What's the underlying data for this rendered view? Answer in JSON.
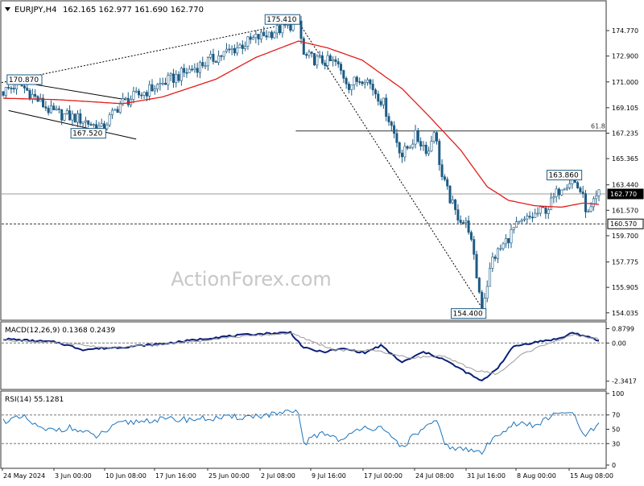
{
  "header": {
    "symbol": "EURJPY,H4",
    "ohlc": "162.165 162.977 161.690 162.770"
  },
  "watermark": "ActionForex.com",
  "colors": {
    "candle": "#1d5b84",
    "ma": "#e31c1c",
    "macd": "#0b1f7a",
    "signal": "#9a9a9a",
    "rsi": "#1b74bd",
    "grid": "#333333"
  },
  "chart_data": [
    {
      "type": "candlestick",
      "title": "EURJPY,H4",
      "y_ticks": [
        174.77,
        172.9,
        171.0,
        169.105,
        167.235,
        165.365,
        163.44,
        161.57,
        159.7,
        157.775,
        155.905,
        154.035
      ],
      "ylim": [
        153.55,
        176.9
      ],
      "x_ticks": [
        "24 May 2024",
        "3 Jun 00:00",
        "10 Jun 08:00",
        "17 Jun 16:00",
        "25 Jun 00:00",
        "2 Jul 08:00",
        "9 Jul 16:00",
        "17 Jul 00:00",
        "24 Jul 08:00",
        "31 Jul 16:00",
        "8 Aug 00:00",
        "15 Aug 08:00"
      ],
      "current_price": "162.770",
      "support_level": "160.570",
      "fib_label": "61.8",
      "fib_level": 167.4,
      "price_labels": [
        "175.410",
        "170.870",
        "167.520",
        "163.860",
        "154.400"
      ],
      "anchors": [
        {
          "t": 0,
          "p": 170.3
        },
        {
          "t": 6,
          "p": 170.87
        },
        {
          "t": 18,
          "p": 168.8
        },
        {
          "t": 30,
          "p": 168.2
        },
        {
          "t": 37,
          "p": 167.52
        },
        {
          "t": 44,
          "p": 169.4
        },
        {
          "t": 60,
          "p": 170.9
        },
        {
          "t": 80,
          "p": 172.8
        },
        {
          "t": 95,
          "p": 174.2
        },
        {
          "t": 111,
          "p": 175.41
        },
        {
          "t": 113,
          "p": 172.9
        },
        {
          "t": 118,
          "p": 172.6
        },
        {
          "t": 125,
          "p": 172.4
        },
        {
          "t": 130,
          "p": 170.8
        },
        {
          "t": 136,
          "p": 171.4
        },
        {
          "t": 143,
          "p": 169.4
        },
        {
          "t": 150,
          "p": 165.6
        },
        {
          "t": 155,
          "p": 167.0
        },
        {
          "t": 160,
          "p": 165.9
        },
        {
          "t": 162,
          "p": 167.6
        },
        {
          "t": 165,
          "p": 164.0
        },
        {
          "t": 170,
          "p": 161.4
        },
        {
          "t": 175,
          "p": 160.3
        },
        {
          "t": 180,
          "p": 154.4
        },
        {
          "t": 184,
          "p": 158.0
        },
        {
          "t": 188,
          "p": 159.0
        },
        {
          "t": 192,
          "p": 160.2
        },
        {
          "t": 198,
          "p": 161.0
        },
        {
          "t": 205,
          "p": 161.8
        },
        {
          "t": 210,
          "p": 163.4
        },
        {
          "t": 214,
          "p": 163.86
        },
        {
          "t": 217,
          "p": 163.0
        },
        {
          "t": 220,
          "p": 161.2
        },
        {
          "t": 224,
          "p": 162.77
        }
      ],
      "moving_average": [
        {
          "t": 0,
          "p": 169.8
        },
        {
          "t": 20,
          "p": 169.7
        },
        {
          "t": 45,
          "p": 169.4
        },
        {
          "t": 60,
          "p": 169.9
        },
        {
          "t": 80,
          "p": 171.2
        },
        {
          "t": 95,
          "p": 172.8
        },
        {
          "t": 111,
          "p": 174.0
        },
        {
          "t": 122,
          "p": 173.5
        },
        {
          "t": 135,
          "p": 172.6
        },
        {
          "t": 150,
          "p": 170.5
        },
        {
          "t": 160,
          "p": 168.5
        },
        {
          "t": 172,
          "p": 166.0
        },
        {
          "t": 182,
          "p": 163.3
        },
        {
          "t": 190,
          "p": 162.3
        },
        {
          "t": 200,
          "p": 161.9
        },
        {
          "t": 210,
          "p": 161.8
        },
        {
          "t": 218,
          "p": 162.1
        },
        {
          "t": 224,
          "p": 162.0
        }
      ]
    },
    {
      "type": "line",
      "title": "MACD(12,26,9) 0.1368 0.2439",
      "y_ticks": [
        "0.8799",
        "0.00",
        "-2.3417"
      ],
      "ylim": [
        -2.75,
        1.2
      ],
      "series": [
        {
          "name": "MACD",
          "points": [
            {
              "t": 0,
              "v": 0.25
            },
            {
              "t": 20,
              "v": 0.05
            },
            {
              "t": 30,
              "v": -0.4
            },
            {
              "t": 45,
              "v": -0.25
            },
            {
              "t": 60,
              "v": -0.05
            },
            {
              "t": 80,
              "v": 0.35
            },
            {
              "t": 95,
              "v": 0.55
            },
            {
              "t": 108,
              "v": 0.65
            },
            {
              "t": 113,
              "v": -0.3
            },
            {
              "t": 120,
              "v": -0.55
            },
            {
              "t": 128,
              "v": -0.35
            },
            {
              "t": 136,
              "v": -0.6
            },
            {
              "t": 142,
              "v": -0.15
            },
            {
              "t": 150,
              "v": -1.2
            },
            {
              "t": 158,
              "v": -0.55
            },
            {
              "t": 165,
              "v": -0.95
            },
            {
              "t": 172,
              "v": -1.6
            },
            {
              "t": 180,
              "v": -2.35
            },
            {
              "t": 186,
              "v": -1.5
            },
            {
              "t": 192,
              "v": -0.2
            },
            {
              "t": 200,
              "v": 0.05
            },
            {
              "t": 210,
              "v": 0.3
            },
            {
              "t": 214,
              "v": 0.65
            },
            {
              "t": 220,
              "v": 0.35
            },
            {
              "t": 224,
              "v": 0.14
            }
          ]
        },
        {
          "name": "Signal",
          "points": [
            {
              "t": 0,
              "v": 0.2
            },
            {
              "t": 25,
              "v": -0.05
            },
            {
              "t": 40,
              "v": -0.3
            },
            {
              "t": 60,
              "v": -0.1
            },
            {
              "t": 85,
              "v": 0.35
            },
            {
              "t": 108,
              "v": 0.6
            },
            {
              "t": 116,
              "v": 0.1
            },
            {
              "t": 125,
              "v": -0.45
            },
            {
              "t": 140,
              "v": -0.45
            },
            {
              "t": 152,
              "v": -0.9
            },
            {
              "t": 165,
              "v": -0.8
            },
            {
              "t": 178,
              "v": -1.7
            },
            {
              "t": 186,
              "v": -1.9
            },
            {
              "t": 195,
              "v": -0.7
            },
            {
              "t": 205,
              "v": 0.0
            },
            {
              "t": 215,
              "v": 0.5
            },
            {
              "t": 224,
              "v": 0.24
            }
          ]
        }
      ]
    },
    {
      "type": "line",
      "title": "RSI(14) 55.1281",
      "y_ticks": [
        "100",
        "70",
        "50",
        "30",
        "0"
      ],
      "ylim": [
        0,
        100
      ],
      "series": [
        {
          "name": "RSI",
          "points": [
            {
              "t": 0,
              "v": 62
            },
            {
              "t": 8,
              "v": 66
            },
            {
              "t": 15,
              "v": 48
            },
            {
              "t": 25,
              "v": 52
            },
            {
              "t": 35,
              "v": 40
            },
            {
              "t": 44,
              "v": 58
            },
            {
              "t": 55,
              "v": 63
            },
            {
              "t": 70,
              "v": 64
            },
            {
              "t": 85,
              "v": 66
            },
            {
              "t": 100,
              "v": 70
            },
            {
              "t": 111,
              "v": 74
            },
            {
              "t": 113,
              "v": 30
            },
            {
              "t": 120,
              "v": 46
            },
            {
              "t": 128,
              "v": 34
            },
            {
              "t": 135,
              "v": 55
            },
            {
              "t": 142,
              "v": 50
            },
            {
              "t": 150,
              "v": 26
            },
            {
              "t": 158,
              "v": 52
            },
            {
              "t": 163,
              "v": 60
            },
            {
              "t": 166,
              "v": 28
            },
            {
              "t": 172,
              "v": 22
            },
            {
              "t": 180,
              "v": 18
            },
            {
              "t": 186,
              "v": 44
            },
            {
              "t": 192,
              "v": 58
            },
            {
              "t": 200,
              "v": 55
            },
            {
              "t": 206,
              "v": 68
            },
            {
              "t": 214,
              "v": 75
            },
            {
              "t": 218,
              "v": 40
            },
            {
              "t": 224,
              "v": 55
            }
          ]
        }
      ]
    }
  ]
}
